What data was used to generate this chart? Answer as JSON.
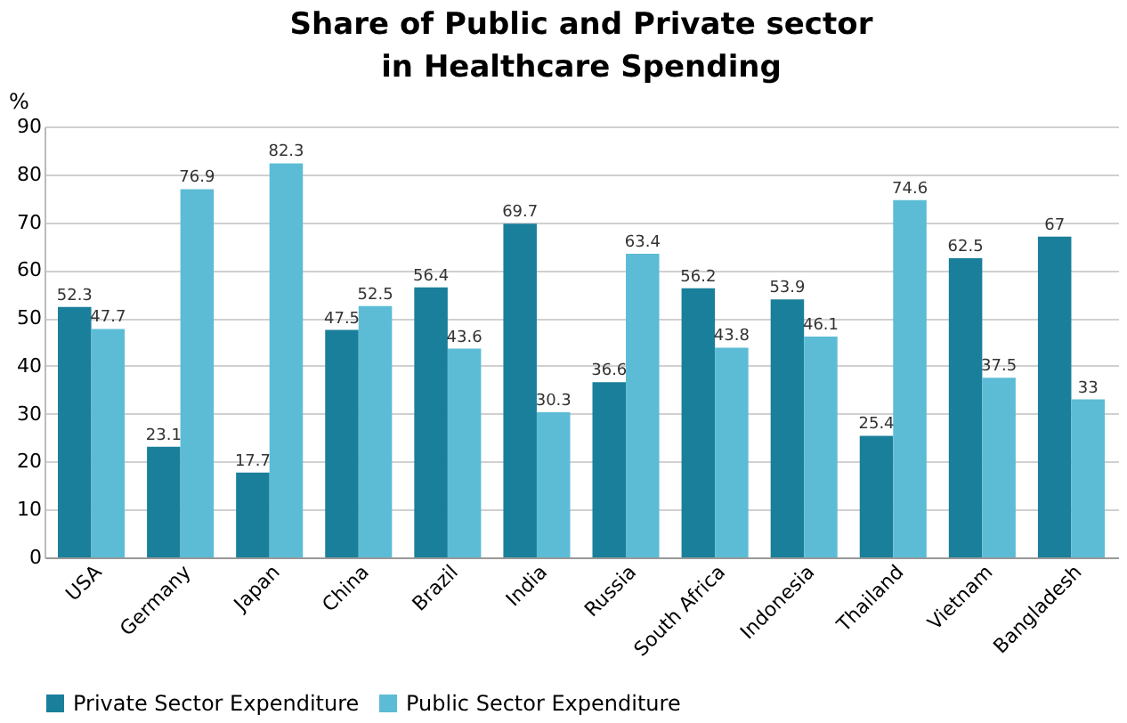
{
  "chart_data": {
    "type": "bar",
    "title": "Share of Public and Private sector in Healthcare Spending",
    "ylabel": "%",
    "categories": [
      "USA",
      "Germany",
      "Japan",
      "China",
      "Brazil",
      "India",
      "Russia",
      "South Africa",
      "Indonesia",
      "Thailand",
      "Vietnam",
      "Bangladesh"
    ],
    "series": [
      {
        "name": "Private Sector Expenditure",
        "color": "#1a7f9a",
        "values": [
          52.3,
          23.1,
          17.7,
          47.5,
          56.4,
          69.7,
          36.6,
          56.2,
          53.9,
          25.4,
          62.5,
          67
        ]
      },
      {
        "name": "Public Sector Expenditure",
        "color": "#5cbcd6",
        "values": [
          47.7,
          76.9,
          82.3,
          52.5,
          43.6,
          30.3,
          63.4,
          43.8,
          46.1,
          74.6,
          37.5,
          33
        ]
      }
    ],
    "ylim": [
      0,
      90
    ],
    "yticks": [
      0,
      10,
      20,
      30,
      40,
      50,
      60,
      70,
      80,
      90
    ],
    "grid": "y",
    "legend": "bottom",
    "data_labels": true
  }
}
